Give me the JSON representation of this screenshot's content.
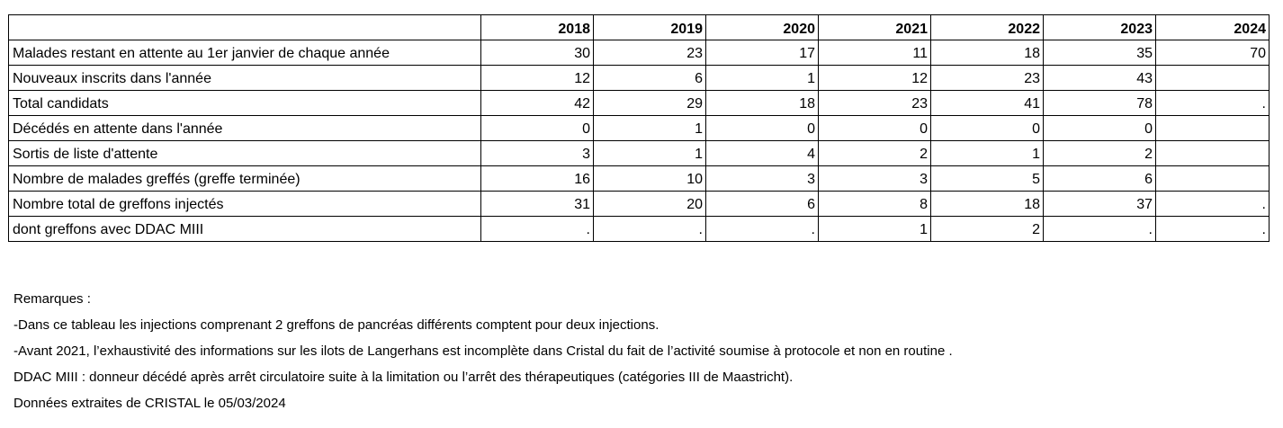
{
  "table": {
    "header_first": "",
    "years": [
      "2018",
      "2019",
      "2020",
      "2021",
      "2022",
      "2023",
      "2024"
    ],
    "rows": [
      {
        "label": "Malades restant en attente au 1er janvier de chaque année",
        "values": [
          "30",
          "23",
          "17",
          "11",
          "18",
          "35",
          "70"
        ]
      },
      {
        "label": "Nouveaux inscrits dans l'année",
        "values": [
          "12",
          "6",
          "1",
          "12",
          "23",
          "43",
          ""
        ]
      },
      {
        "label": "Total candidats",
        "values": [
          "42",
          "29",
          "18",
          "23",
          "41",
          "78",
          "."
        ]
      },
      {
        "label": "Décédés en attente dans l'année",
        "values": [
          "0",
          "1",
          "0",
          "0",
          "0",
          "0",
          ""
        ]
      },
      {
        "label": "Sortis de liste d'attente",
        "values": [
          "3",
          "1",
          "4",
          "2",
          "1",
          "2",
          ""
        ]
      },
      {
        "label": "Nombre de malades greffés (greffe terminée)",
        "values": [
          "16",
          "10",
          "3",
          "3",
          "5",
          "6",
          ""
        ]
      },
      {
        "label": "Nombre total de greffons injectés",
        "values": [
          "31",
          "20",
          "6",
          "8",
          "18",
          "37",
          "."
        ]
      },
      {
        "label": "dont greffons avec DDAC MIII",
        "values": [
          ".",
          ".",
          ".",
          "1",
          "2",
          ".",
          "."
        ]
      }
    ]
  },
  "notes": {
    "title": "Remarques :",
    "line1": "-Dans ce tableau les injections comprenant 2 greffons de pancréas différents comptent pour deux injections.",
    "line2": "-Avant 2021, l’exhaustivité des informations sur les ilots de Langerhans est incomplète dans Cristal du fait de l’activité soumise à protocole et non en routine .",
    "line3": "DDAC MIII : donneur décédé après arrêt circulatoire suite à la limitation ou l’arrêt des thérapeutiques (catégories III de Maastricht).",
    "line4": "Données extraites de CRISTAL le 05/03/2024"
  }
}
